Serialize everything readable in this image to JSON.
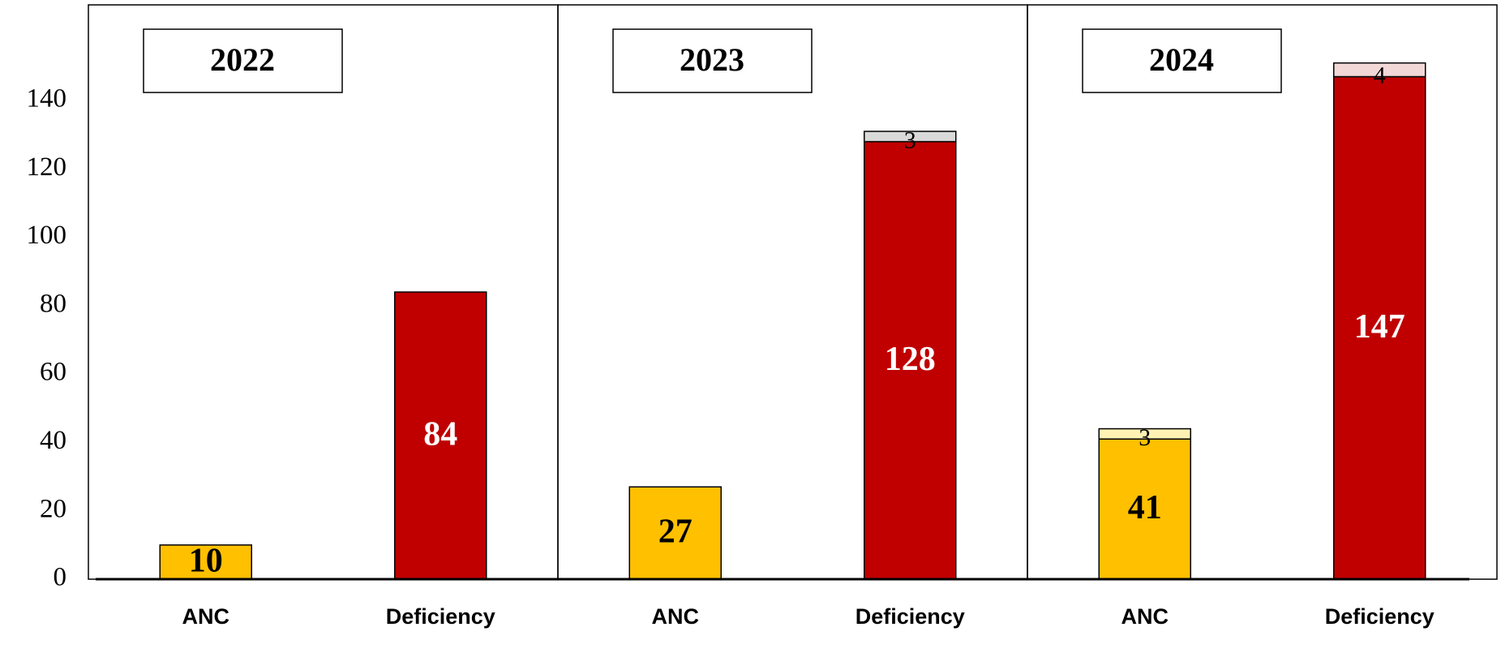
{
  "chart_data": {
    "type": "bar",
    "stacked": true,
    "ylim": [
      0,
      168
    ],
    "yticks": [
      0,
      20,
      40,
      60,
      80,
      100,
      120,
      140
    ],
    "panels": [
      {
        "title": "2022",
        "categories": [
          "ANC",
          "Deficiency"
        ],
        "series": [
          {
            "colors": [
              "#ffc000",
              "#c00000"
            ],
            "values": [
              10,
              84
            ]
          }
        ]
      },
      {
        "title": "2023",
        "categories": [
          "ANC",
          "Deficiency"
        ],
        "series": [
          {
            "colors": [
              "#ffc000",
              "#c00000"
            ],
            "values": [
              27,
              128
            ]
          },
          {
            "colors": [
              null,
              "#d9d9d9"
            ],
            "values": [
              null,
              3
            ]
          }
        ]
      },
      {
        "title": "2024",
        "categories": [
          "ANC",
          "Deficiency"
        ],
        "series": [
          {
            "colors": [
              "#ffc000",
              "#c00000"
            ],
            "values": [
              41,
              147
            ]
          },
          {
            "colors": [
              "#fff2b3",
              "#f2d7d7"
            ],
            "values": [
              3,
              4
            ]
          }
        ]
      }
    ]
  }
}
